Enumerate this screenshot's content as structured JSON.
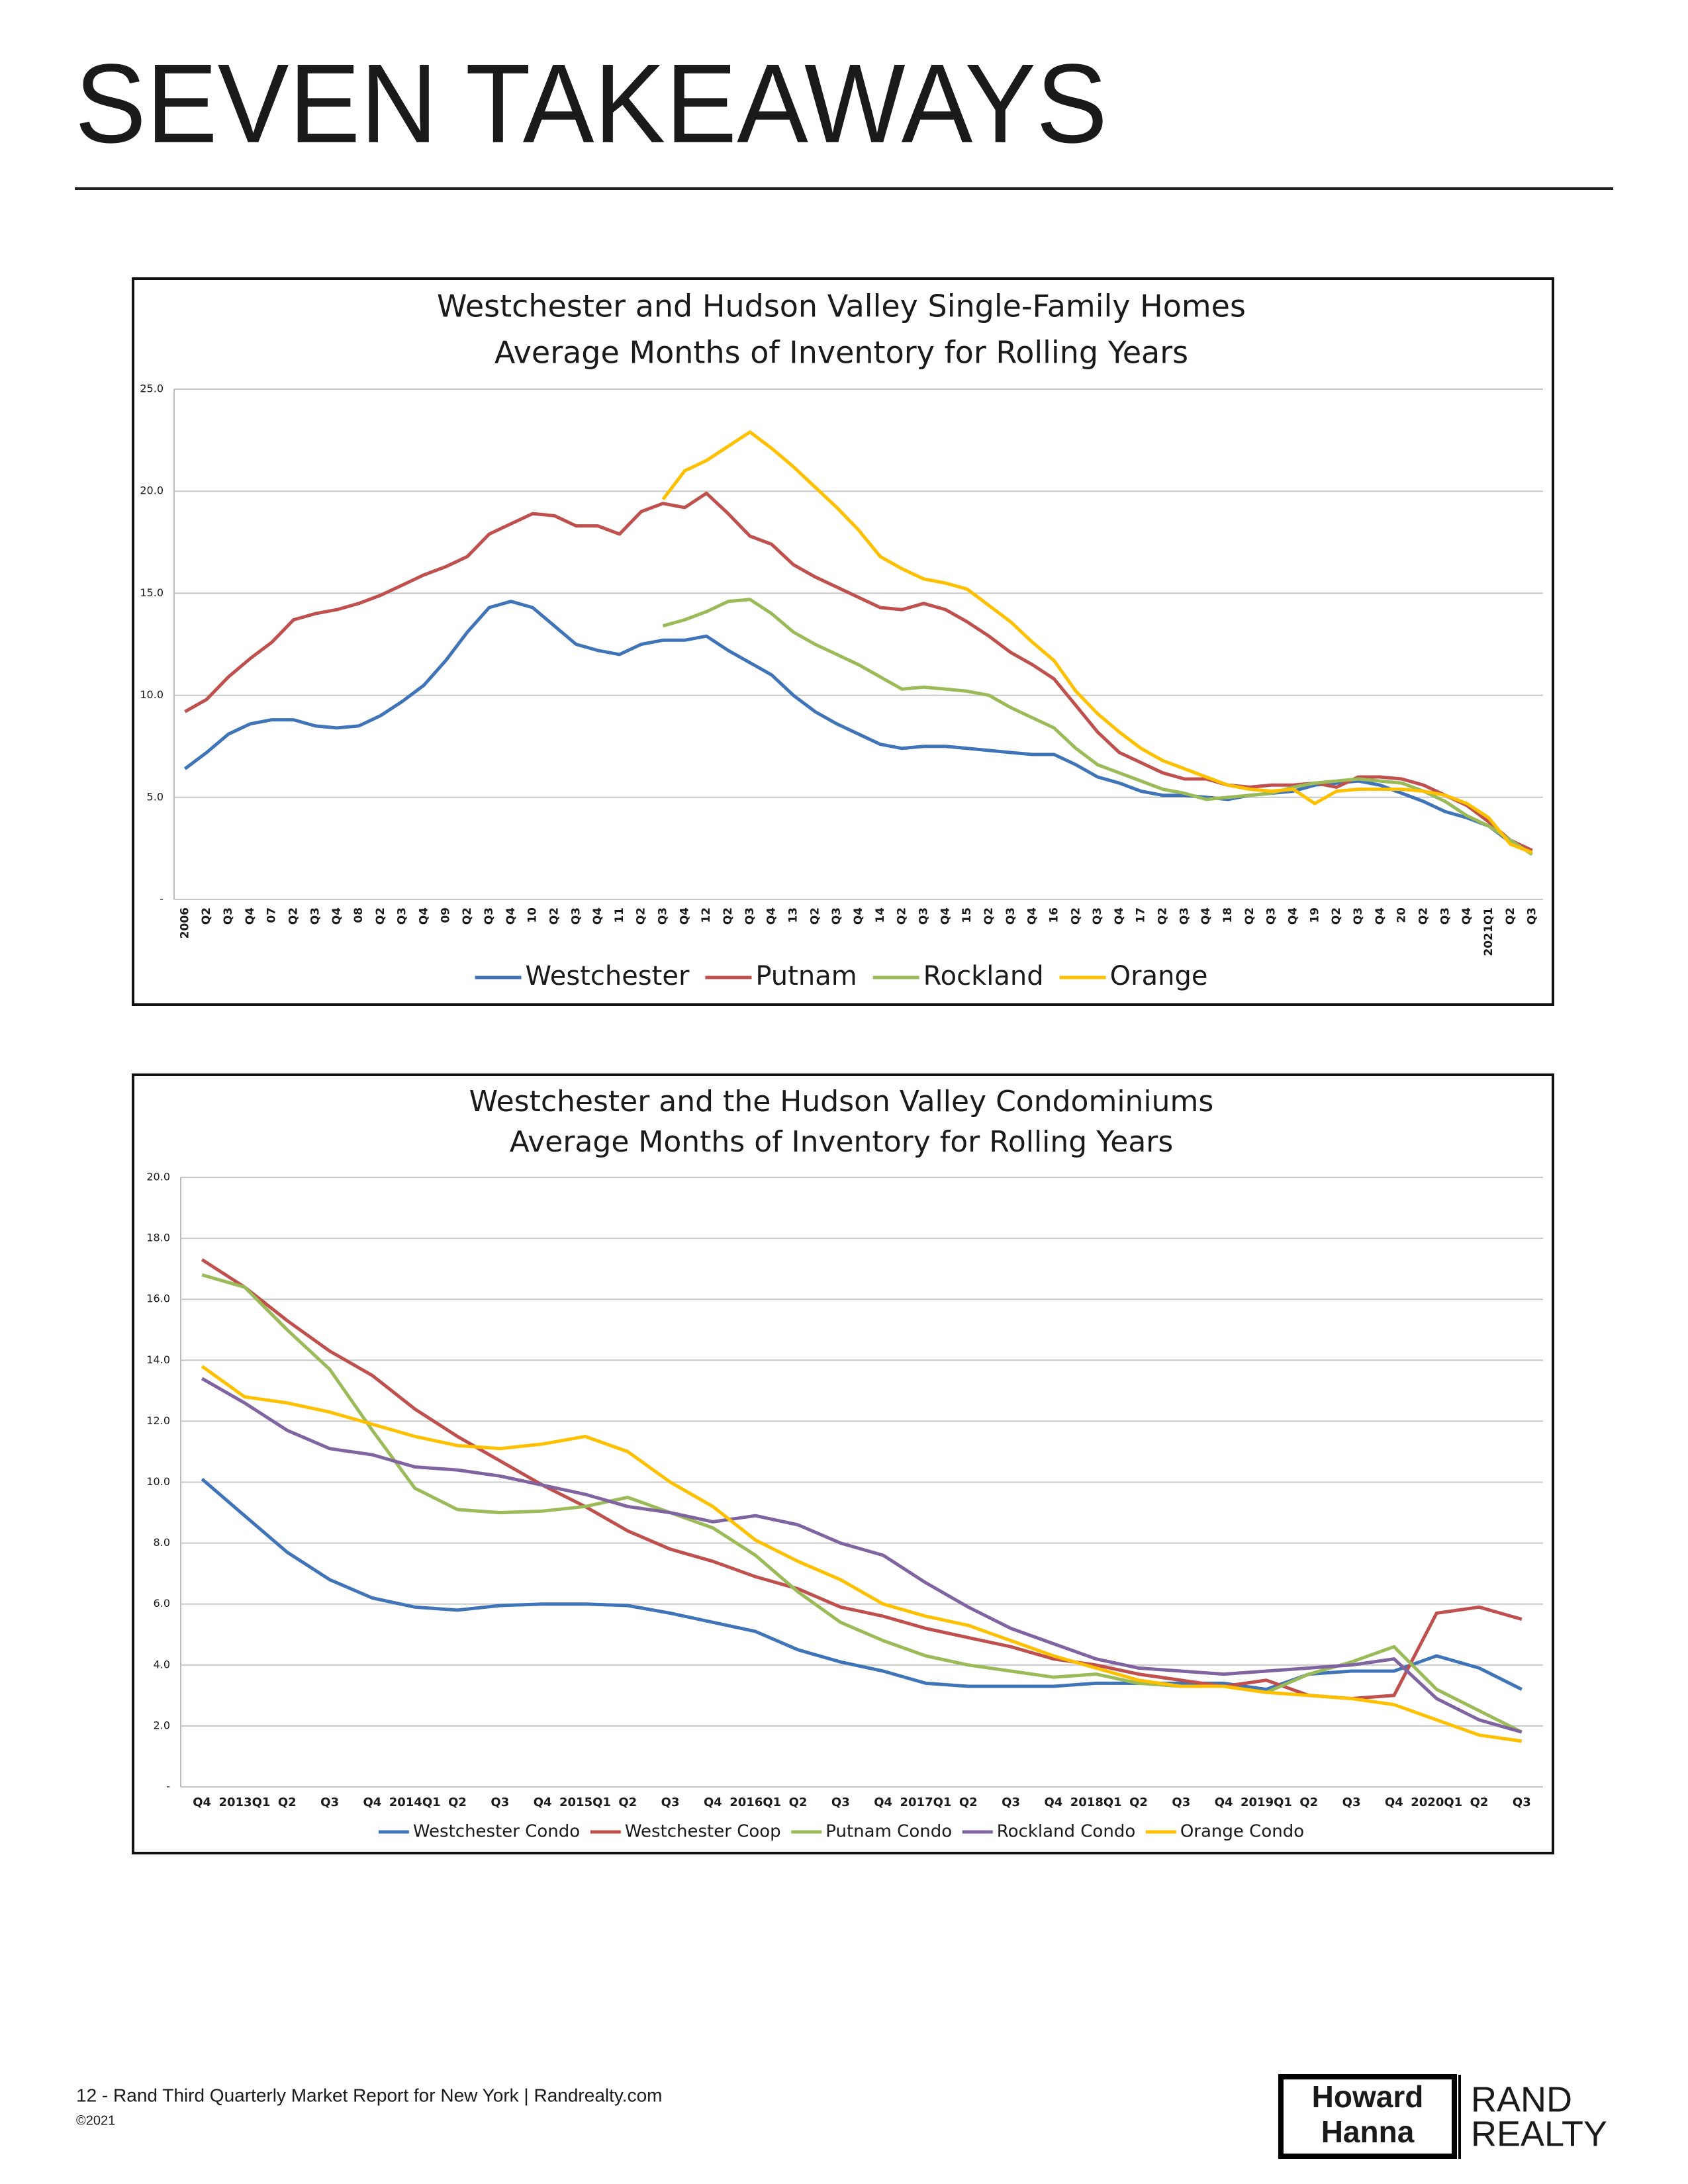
{
  "title": "SEVEN TAKEAWAYS",
  "chart_data": [
    {
      "type": "line",
      "title": "Westchester and Hudson Valley Single-Family Homes",
      "subtitle": "Average Months of Inventory for Rolling Years",
      "categories": [
        "2006",
        "Q2",
        "Q3",
        "Q4",
        "07",
        "Q2",
        "Q3",
        "Q4",
        "08",
        "Q2",
        "Q3",
        "Q4",
        "09",
        "Q2",
        "Q3",
        "Q4",
        "10",
        "Q2",
        "Q3",
        "Q4",
        "11",
        "Q2",
        "Q3",
        "Q4",
        "12",
        "Q2",
        "Q3",
        "Q4",
        "13",
        "Q2",
        "Q3",
        "Q4",
        "14",
        "Q2",
        "Q3",
        "Q4",
        "15",
        "Q2",
        "Q3",
        "Q4",
        "16",
        "Q2",
        "Q3",
        "Q4",
        "17",
        "Q2",
        "Q3",
        "Q4",
        "18",
        "Q2",
        "Q3",
        "Q4",
        "19",
        "Q2",
        "Q3",
        "Q4",
        "20",
        "Q2",
        "Q3",
        "Q4",
        "2021Q1",
        "Q2",
        "Q3"
      ],
      "series": [
        {
          "name": "Westchester",
          "color": "#3f74b9",
          "values": [
            6.4,
            7.2,
            8.1,
            8.6,
            8.8,
            8.8,
            8.5,
            8.4,
            8.5,
            9.0,
            9.7,
            10.5,
            11.7,
            13.1,
            14.3,
            14.6,
            14.3,
            13.4,
            12.5,
            12.2,
            12.0,
            12.5,
            12.7,
            12.7,
            12.9,
            12.2,
            11.6,
            11.0,
            10.0,
            9.2,
            8.6,
            8.1,
            7.6,
            7.4,
            7.5,
            7.5,
            7.4,
            7.3,
            7.2,
            7.1,
            7.1,
            6.6,
            6.0,
            5.7,
            5.3,
            5.1,
            5.1,
            5.0,
            4.9,
            5.1,
            5.2,
            5.3,
            5.6,
            5.7,
            5.8,
            5.6,
            5.2,
            4.8,
            4.3,
            4.0,
            3.6,
            2.8,
            2.4
          ]
        },
        {
          "name": "Putnam",
          "color": "#c0504d",
          "values": [
            9.2,
            9.8,
            10.9,
            11.8,
            12.6,
            13.7,
            14.0,
            14.2,
            14.5,
            14.9,
            15.4,
            15.9,
            16.3,
            16.8,
            17.9,
            18.4,
            18.9,
            18.8,
            18.3,
            18.3,
            17.9,
            19.0,
            19.4,
            19.2,
            19.9,
            18.9,
            17.8,
            17.4,
            16.4,
            15.8,
            15.3,
            14.8,
            14.3,
            14.2,
            14.5,
            14.2,
            13.6,
            12.9,
            12.1,
            11.5,
            10.8,
            9.5,
            8.2,
            7.2,
            6.7,
            6.2,
            5.9,
            5.9,
            5.6,
            5.5,
            5.6,
            5.6,
            5.7,
            5.5,
            6.0,
            6.0,
            5.9,
            5.6,
            5.1,
            4.6,
            3.8,
            2.9,
            2.4
          ]
        },
        {
          "name": "Rockland",
          "color": "#9bbb59",
          "values": [
            null,
            null,
            null,
            null,
            null,
            null,
            null,
            null,
            null,
            null,
            null,
            null,
            null,
            null,
            null,
            null,
            null,
            null,
            null,
            null,
            null,
            null,
            13.4,
            13.7,
            14.1,
            14.6,
            14.7,
            14.0,
            13.1,
            12.5,
            12.0,
            11.5,
            10.9,
            10.3,
            10.4,
            10.3,
            10.2,
            10.0,
            9.4,
            8.9,
            8.4,
            7.4,
            6.6,
            6.2,
            5.8,
            5.4,
            5.2,
            4.9,
            5.0,
            5.1,
            5.2,
            5.5,
            5.7,
            5.8,
            5.9,
            5.8,
            5.7,
            5.3,
            4.8,
            4.1,
            3.6,
            2.9,
            2.2
          ]
        },
        {
          "name": "Orange",
          "color": "#ffc000",
          "values": [
            null,
            null,
            null,
            null,
            null,
            null,
            null,
            null,
            null,
            null,
            null,
            null,
            null,
            null,
            null,
            null,
            null,
            null,
            null,
            null,
            null,
            null,
            19.6,
            21.0,
            21.5,
            22.2,
            22.9,
            22.1,
            21.2,
            20.2,
            19.2,
            18.1,
            16.8,
            16.2,
            15.7,
            15.5,
            15.2,
            14.4,
            13.6,
            12.6,
            11.7,
            10.2,
            9.1,
            8.2,
            7.4,
            6.8,
            6.4,
            6.0,
            5.6,
            5.4,
            5.3,
            5.4,
            4.7,
            5.3,
            5.4,
            5.4,
            5.4,
            5.3,
            5.1,
            4.7,
            4.0,
            2.7,
            2.3
          ]
        }
      ],
      "ylim": [
        0,
        25
      ],
      "yticks": [
        {
          "value": 0,
          "label": "-"
        },
        {
          "value": 5,
          "label": "5.0"
        },
        {
          "value": 10,
          "label": "10.0"
        },
        {
          "value": 15,
          "label": "15.0"
        },
        {
          "value": 20,
          "label": "20.0"
        },
        {
          "value": 25,
          "label": "25.0"
        }
      ],
      "grid": true,
      "legend": "bottom"
    },
    {
      "type": "line",
      "title": "Westchester and the Hudson Valley Condominiums",
      "subtitle": "Average Months of Inventory for Rolling Years",
      "categories": [
        "Q4",
        "2013Q1",
        "Q2",
        "Q3",
        "Q4",
        "2014Q1",
        "Q2",
        "Q3",
        "Q4",
        "2015Q1",
        "Q2",
        "Q3",
        "Q4",
        "2016Q1",
        "Q2",
        "Q3",
        "Q4",
        "2017Q1",
        "Q2",
        "Q3",
        "Q4",
        "2018Q1",
        "Q2",
        "Q3",
        "Q4",
        "2019Q1",
        "Q2",
        "Q3",
        "Q4",
        "2020Q1",
        "Q2",
        "Q3"
      ],
      "series": [
        {
          "name": "Westchester Condo",
          "color": "#3f74b9",
          "values": [
            10.1,
            8.9,
            7.7,
            6.8,
            6.2,
            5.9,
            5.8,
            5.95,
            6.0,
            6.0,
            5.95,
            5.7,
            5.4,
            5.1,
            4.5,
            4.1,
            3.8,
            3.4,
            3.3,
            3.3,
            3.3,
            3.4,
            3.4,
            3.4,
            3.4,
            3.2,
            3.7,
            3.8,
            3.8,
            4.3,
            3.9,
            3.2
          ]
        },
        {
          "name": "Westchester Coop",
          "color": "#c0504d",
          "values": [
            17.3,
            16.4,
            15.3,
            14.3,
            13.5,
            12.4,
            11.5,
            10.7,
            9.9,
            9.2,
            8.4,
            7.8,
            7.4,
            6.9,
            6.5,
            5.9,
            5.6,
            5.2,
            4.9,
            4.6,
            4.2,
            4.0,
            3.7,
            3.5,
            3.3,
            3.5,
            3.0,
            2.9,
            3.0,
            5.7,
            5.9,
            5.5
          ]
        },
        {
          "name": "Putnam Condo",
          "color": "#9bbb59",
          "values": [
            16.8,
            16.4,
            15.0,
            13.7,
            11.7,
            9.8,
            9.1,
            9.0,
            9.05,
            9.2,
            9.5,
            9.0,
            8.5,
            7.6,
            6.4,
            5.4,
            4.8,
            4.3,
            4.0,
            3.8,
            3.6,
            3.7,
            3.4,
            3.3,
            3.3,
            3.1,
            3.7,
            4.1,
            4.6,
            3.2,
            2.5,
            1.8
          ]
        },
        {
          "name": "Rockland Condo",
          "color": "#8064a2",
          "values": [
            13.4,
            12.6,
            11.7,
            11.1,
            10.9,
            10.5,
            10.4,
            10.2,
            9.9,
            9.6,
            9.2,
            9.0,
            8.7,
            8.9,
            8.6,
            8.0,
            7.6,
            6.7,
            5.9,
            5.2,
            4.7,
            4.2,
            3.9,
            3.8,
            3.7,
            3.8,
            3.9,
            4.0,
            4.2,
            2.9,
            2.2,
            1.8
          ]
        },
        {
          "name": "Orange Condo",
          "color": "#ffc000",
          "values": [
            13.8,
            12.8,
            12.6,
            12.3,
            11.9,
            11.5,
            11.2,
            11.1,
            11.25,
            11.5,
            11.0,
            10.0,
            9.2,
            8.1,
            7.4,
            6.8,
            6.0,
            5.6,
            5.3,
            4.8,
            4.3,
            3.9,
            3.5,
            3.3,
            3.3,
            3.1,
            3.0,
            2.9,
            2.7,
            2.2,
            1.7,
            1.5
          ]
        }
      ],
      "ylim": [
        0,
        20
      ],
      "yticks": [
        {
          "value": 0,
          "label": "-"
        },
        {
          "value": 2,
          "label": "2.0"
        },
        {
          "value": 4,
          "label": "4.0"
        },
        {
          "value": 6,
          "label": "6.0"
        },
        {
          "value": 8,
          "label": "8.0"
        },
        {
          "value": 10,
          "label": "10.0"
        },
        {
          "value": 12,
          "label": "12.0"
        },
        {
          "value": 14,
          "label": "14.0"
        },
        {
          "value": 16,
          "label": "16.0"
        },
        {
          "value": 18,
          "label": "18.0"
        },
        {
          "value": 20,
          "label": "20.0"
        }
      ],
      "grid": true,
      "legend": "bottom"
    }
  ],
  "footer": {
    "text": "12 - Rand Third Quarterly Market Report for New York  |  Randrealty.com",
    "copyright": "©2021"
  },
  "logo": {
    "line1": "Howard",
    "line2": "Hanna",
    "brand1": "RAND",
    "brand2": "REALTY"
  }
}
